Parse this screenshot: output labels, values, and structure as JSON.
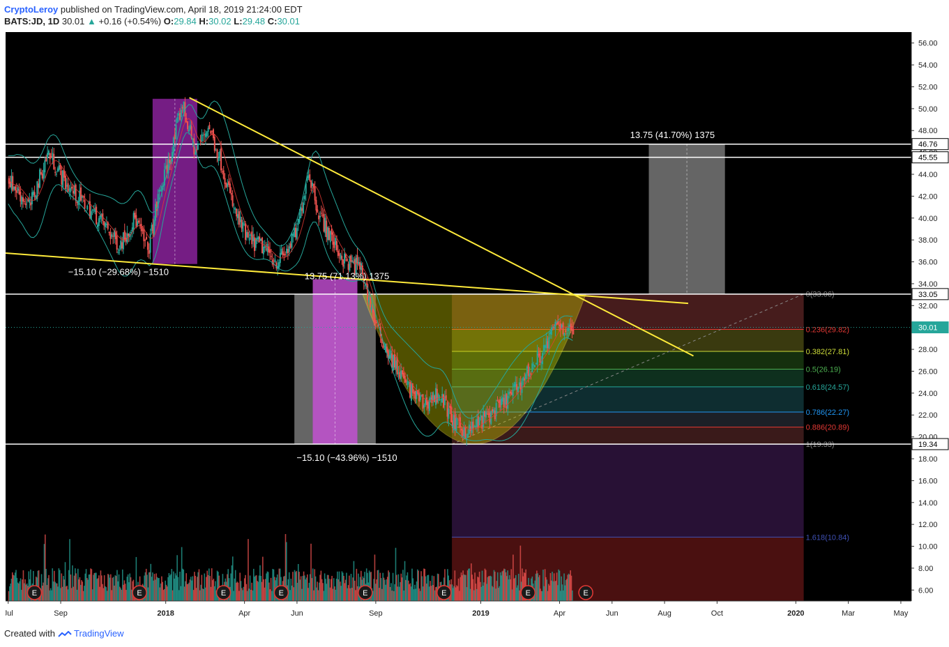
{
  "header": {
    "author": "CryptoLeroy",
    "published_text": "published on TradingView.com, April 18, 2019 21:24:00 EDT",
    "symbol": "BATS:JD, 1D",
    "last": "30.01",
    "change": "+0.16 (+0.54%)",
    "open_label": "O:",
    "open": "29.84",
    "high_label": "H:",
    "high": "30.02",
    "low_label": "L:",
    "low": "29.48",
    "close_label": "C:",
    "close": "30.01"
  },
  "footer": {
    "created_with": "Created with",
    "brand": "TradingView"
  },
  "colors": {
    "background": "#000000",
    "up_candle": "#26a69a",
    "down_candle": "#ef5350",
    "trendline": "#ffeb3b",
    "bollinger": "#26a69a",
    "moving_average": "#e53935",
    "purple_box": "#9c27b0",
    "gray_box": "#777777",
    "cup": "#c8c800"
  },
  "chart_data": {
    "type": "candlestick",
    "symbol": "BATS:JD",
    "interval": "1D",
    "y_range": [
      5,
      57
    ],
    "y_ticks": [
      "56.00",
      "54.00",
      "52.00",
      "50.00",
      "48.00",
      "46.00",
      "44.00",
      "42.00",
      "40.00",
      "38.00",
      "36.00",
      "34.00",
      "32.00",
      "30.00",
      "28.00",
      "26.00",
      "24.00",
      "22.00",
      "20.00",
      "18.00",
      "16.00",
      "14.00",
      "12.00",
      "10.00",
      "8.00",
      "6.00"
    ],
    "x_ticks": [
      {
        "label": "Jul",
        "t": 0
      },
      {
        "label": "Sep",
        "t": 2
      },
      {
        "label": "2018",
        "t": 6
      },
      {
        "label": "Apr",
        "t": 9
      },
      {
        "label": "Jun",
        "t": 11
      },
      {
        "label": "Sep",
        "t": 14
      },
      {
        "label": "2019",
        "t": 18
      },
      {
        "label": "Apr",
        "t": 21
      },
      {
        "label": "Jun",
        "t": 23
      },
      {
        "label": "Aug",
        "t": 25
      },
      {
        "label": "Oct",
        "t": 27
      },
      {
        "label": "2020",
        "t": 30
      },
      {
        "label": "Mar",
        "t": 32
      },
      {
        "label": "May",
        "t": 34
      }
    ],
    "price_path": [
      {
        "t": 0,
        "p": 43.5
      },
      {
        "t": 0.8,
        "p": 41
      },
      {
        "t": 1.5,
        "p": 46
      },
      {
        "t": 2.2,
        "p": 43
      },
      {
        "t": 3,
        "p": 41
      },
      {
        "t": 3.6,
        "p": 39.5
      },
      {
        "t": 4.2,
        "p": 37.5
      },
      {
        "t": 4.8,
        "p": 40
      },
      {
        "t": 5.3,
        "p": 37
      },
      {
        "t": 5.7,
        "p": 42
      },
      {
        "t": 6.2,
        "p": 46
      },
      {
        "t": 6.6,
        "p": 50.5
      },
      {
        "t": 7.1,
        "p": 46
      },
      {
        "t": 7.6,
        "p": 48.5
      },
      {
        "t": 8.1,
        "p": 45
      },
      {
        "t": 8.6,
        "p": 40.5
      },
      {
        "t": 9.1,
        "p": 38
      },
      {
        "t": 9.6,
        "p": 37.5
      },
      {
        "t": 10.2,
        "p": 36
      },
      {
        "t": 10.6,
        "p": 37
      },
      {
        "t": 11.0,
        "p": 39
      },
      {
        "t": 11.4,
        "p": 44.5
      },
      {
        "t": 11.8,
        "p": 40.5
      },
      {
        "t": 12.3,
        "p": 38
      },
      {
        "t": 12.8,
        "p": 36
      },
      {
        "t": 13.4,
        "p": 35.5
      },
      {
        "t": 14.0,
        "p": 30
      },
      {
        "t": 14.6,
        "p": 27
      },
      {
        "t": 15.2,
        "p": 24.5
      },
      {
        "t": 15.8,
        "p": 23
      },
      {
        "t": 16.4,
        "p": 24
      },
      {
        "t": 17.0,
        "p": 21
      },
      {
        "t": 17.5,
        "p": 20.5
      },
      {
        "t": 18.0,
        "p": 21.5
      },
      {
        "t": 18.6,
        "p": 22.5
      },
      {
        "t": 19.2,
        "p": 24
      },
      {
        "t": 19.8,
        "p": 26
      },
      {
        "t": 20.4,
        "p": 28
      },
      {
        "t": 20.9,
        "p": 30.5
      },
      {
        "t": 21.3,
        "p": 29.6
      },
      {
        "t": 21.5,
        "p": 30.01
      }
    ],
    "price_badges": [
      {
        "label": "46.76",
        "p": 46.76,
        "style": "white"
      },
      {
        "label": "45.55",
        "p": 45.55,
        "style": "white"
      },
      {
        "label": "33.05",
        "p": 33.05,
        "style": "white"
      },
      {
        "label": "30.01",
        "p": 30.01,
        "style": "current"
      },
      {
        "label": "19.34",
        "p": 19.34,
        "style": "white"
      }
    ],
    "horizontal_levels": [
      46.76,
      45.55,
      33.05,
      19.34
    ],
    "fib_levels": [
      {
        "label": "0(33.06)",
        "p": 33.06,
        "color": "#888888"
      },
      {
        "label": "0.236(29.82)",
        "p": 29.82,
        "color": "#e53935"
      },
      {
        "label": "0.382(27.81)",
        "p": 27.81,
        "color": "#cddc39"
      },
      {
        "label": "0.5(26.19)",
        "p": 26.19,
        "color": "#4caf50"
      },
      {
        "label": "0.618(24.57)",
        "p": 24.57,
        "color": "#26a69a"
      },
      {
        "label": "0.786(22.27)",
        "p": 22.27,
        "color": "#2196f3"
      },
      {
        "label": "0.886(20.89)",
        "p": 20.89,
        "color": "#e53935"
      },
      {
        "label": "1(19.33)",
        "p": 19.33,
        "color": "#888888"
      },
      {
        "label": "1.618(10.84)",
        "p": 10.84,
        "color": "#3f51b5"
      }
    ],
    "measure_labels": [
      {
        "text": "−15.10 (−29.68%) −1510",
        "t": 4.2,
        "p": 34.8
      },
      {
        "text": "13.75 (71.13%) 1375",
        "t": 12.9,
        "p": 34.4
      },
      {
        "text": "−15.10 (−43.96%) −1510",
        "t": 12.9,
        "p": 17.8
      },
      {
        "text": "13.75 (41.70%) 1375",
        "t": 25.3,
        "p": 47.3
      }
    ],
    "earnings_markers": [
      1.0,
      5.0,
      8.2,
      10.4,
      13.6,
      16.6,
      19.8,
      22.0
    ],
    "earnings_label": "E",
    "ohlc": {
      "open": 29.84,
      "high": 30.02,
      "low": 29.48,
      "close": 30.01
    }
  }
}
